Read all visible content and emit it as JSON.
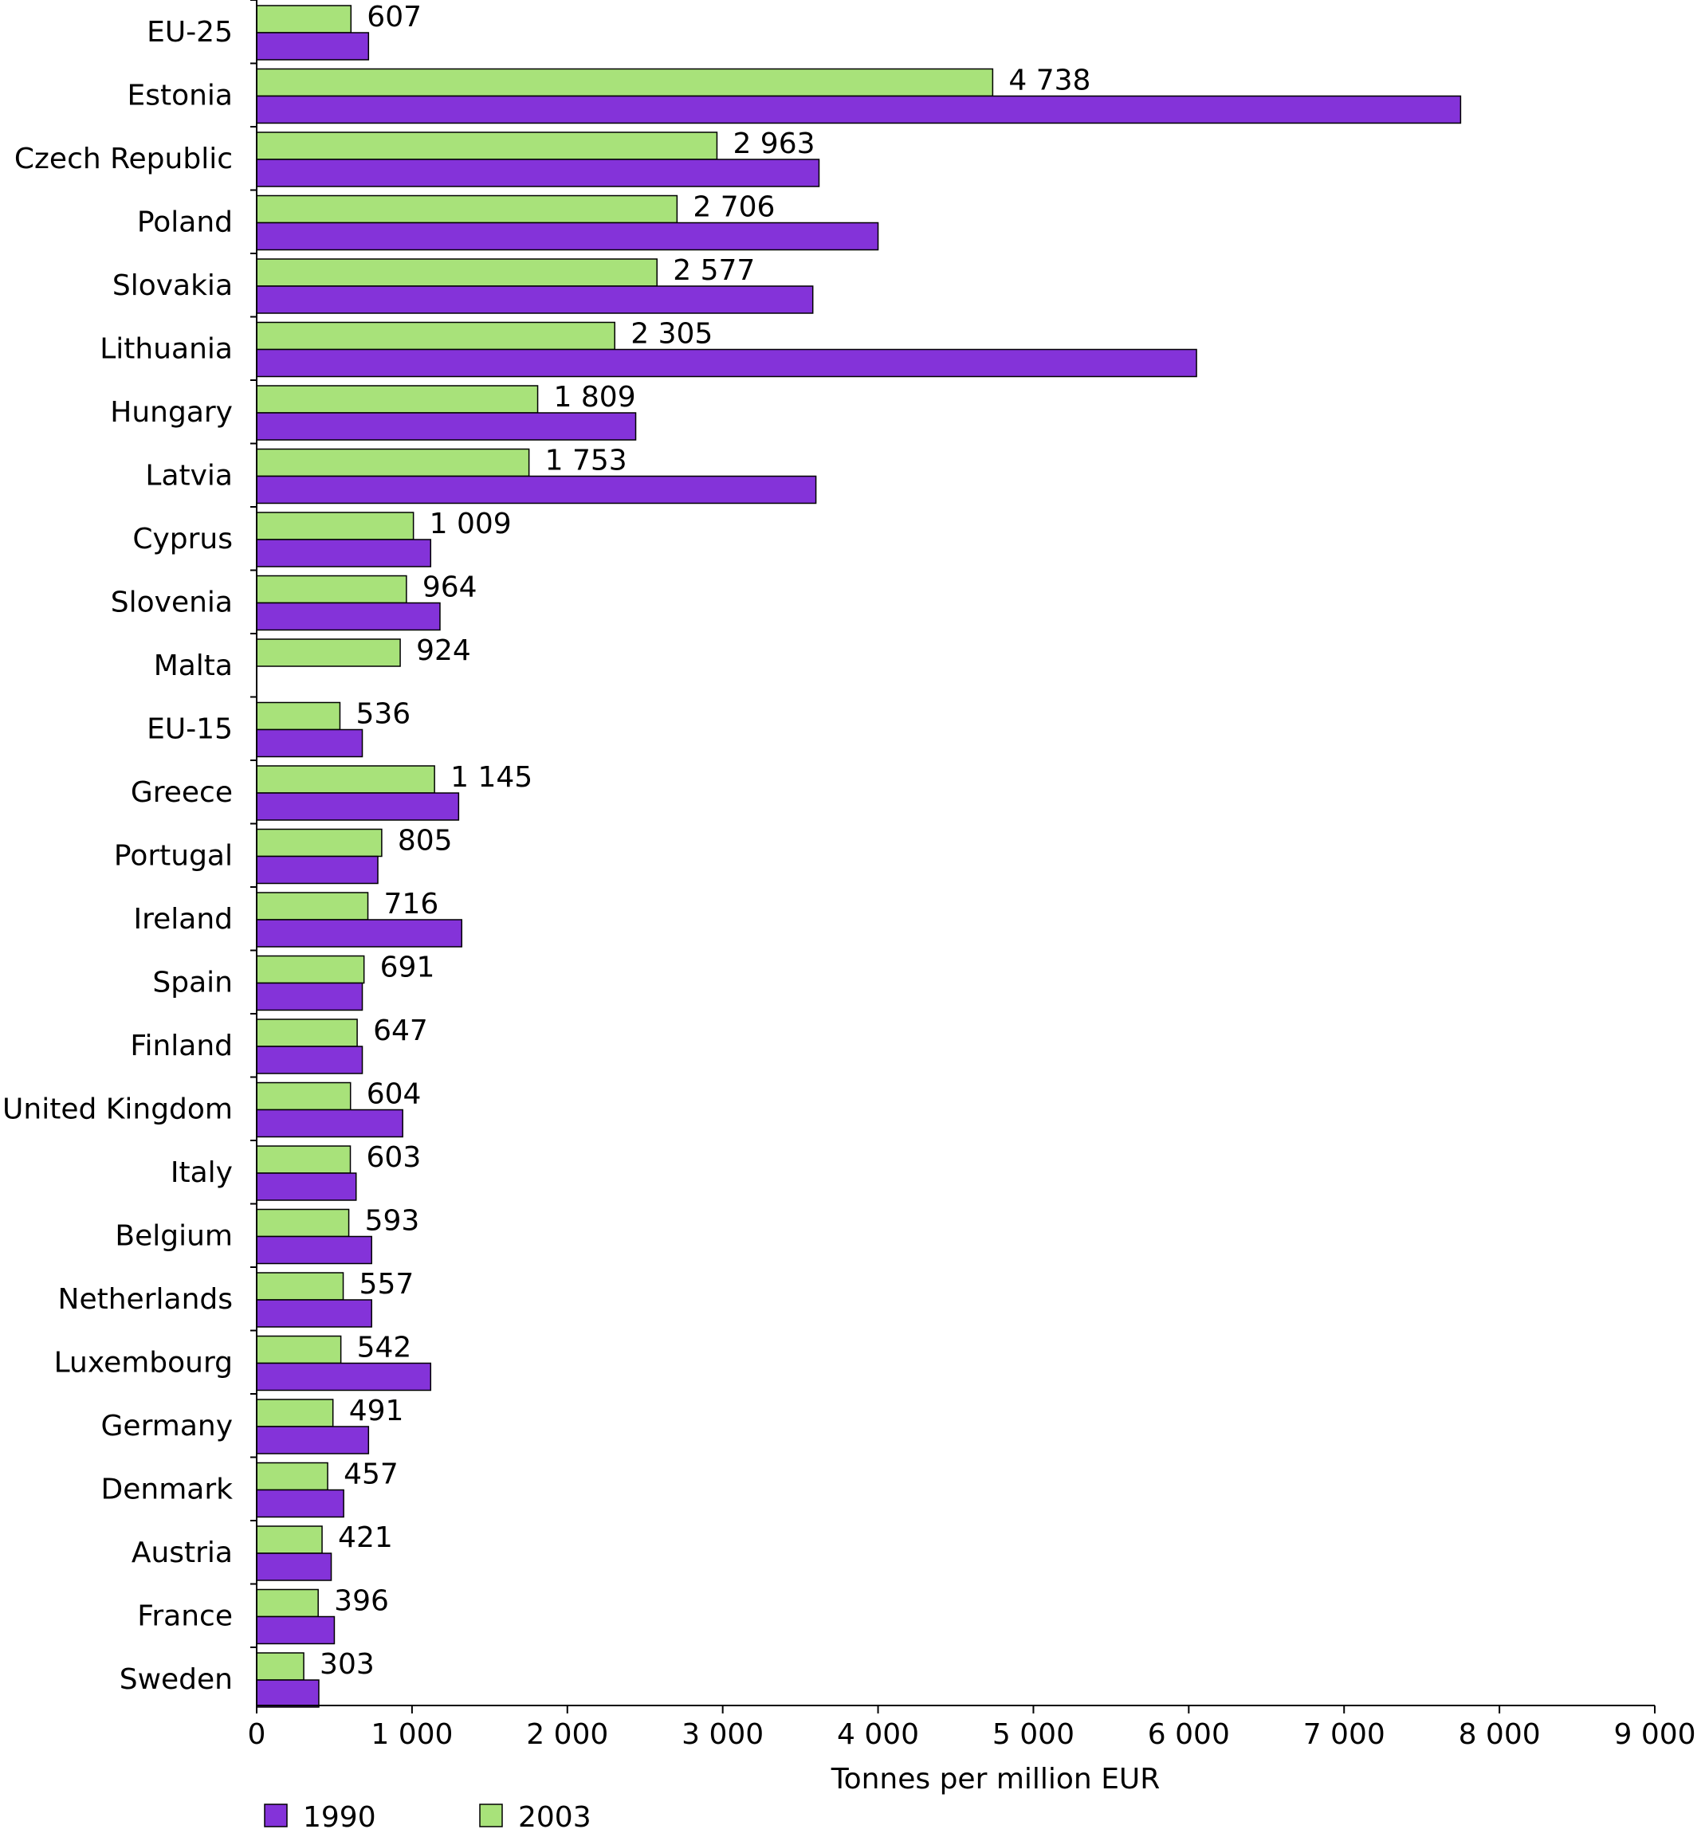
{
  "chart_data": {
    "type": "bar",
    "orientation": "horizontal",
    "title": "",
    "xlabel": "Tonnes per million EUR",
    "ylabel": "",
    "xlim": [
      0,
      9000
    ],
    "x_ticks": [
      0,
      1000,
      2000,
      3000,
      4000,
      5000,
      6000,
      7000,
      8000,
      9000
    ],
    "x_tick_labels": [
      "0",
      "1 000",
      "2 000",
      "3 000",
      "4 000",
      "5 000",
      "6 000",
      "7 000",
      "8 000",
      "9 000"
    ],
    "grid": false,
    "legend_position": "bottom-left",
    "categories": [
      "EU-25",
      "Estonia",
      "Czech Republic",
      "Poland",
      "Slovakia",
      "Lithuania",
      "Hungary",
      "Latvia",
      "Cyprus",
      "Slovenia",
      "Malta",
      "EU-15",
      "Greece",
      "Portugal",
      "Ireland",
      "Spain",
      "Finland",
      "United Kingdom",
      "Italy",
      "Belgium",
      "Netherlands",
      "Luxembourg",
      "Germany",
      "Denmark",
      "Austria",
      "France",
      "Sweden"
    ],
    "series": [
      {
        "name": "2003",
        "color": "#a8e27a",
        "values": [
          607,
          4738,
          2963,
          2706,
          2577,
          2305,
          1809,
          1753,
          1009,
          964,
          924,
          536,
          1145,
          805,
          716,
          691,
          647,
          604,
          603,
          593,
          557,
          542,
          491,
          457,
          421,
          396,
          303
        ],
        "value_labels": [
          "607",
          "4 738",
          "2 963",
          "2 706",
          "2 577",
          "2 305",
          "1 809",
          "1 753",
          "1 009",
          "964",
          "924",
          "536",
          "1 145",
          "805",
          "716",
          "691",
          "647",
          "604",
          "603",
          "593",
          "557",
          "542",
          "491",
          "457",
          "421",
          "396",
          "303"
        ]
      },
      {
        "name": "1990",
        "color": "#8433d9",
        "values": [
          720,
          7750,
          3620,
          4000,
          3580,
          6050,
          2440,
          3600,
          1120,
          1180,
          null,
          680,
          1300,
          780,
          1320,
          680,
          680,
          940,
          640,
          740,
          740,
          1120,
          720,
          560,
          480,
          500,
          400
        ]
      }
    ],
    "legend": [
      {
        "name": "1990",
        "color": "#8433d9"
      },
      {
        "name": "2003",
        "color": "#a8e27a"
      }
    ]
  }
}
